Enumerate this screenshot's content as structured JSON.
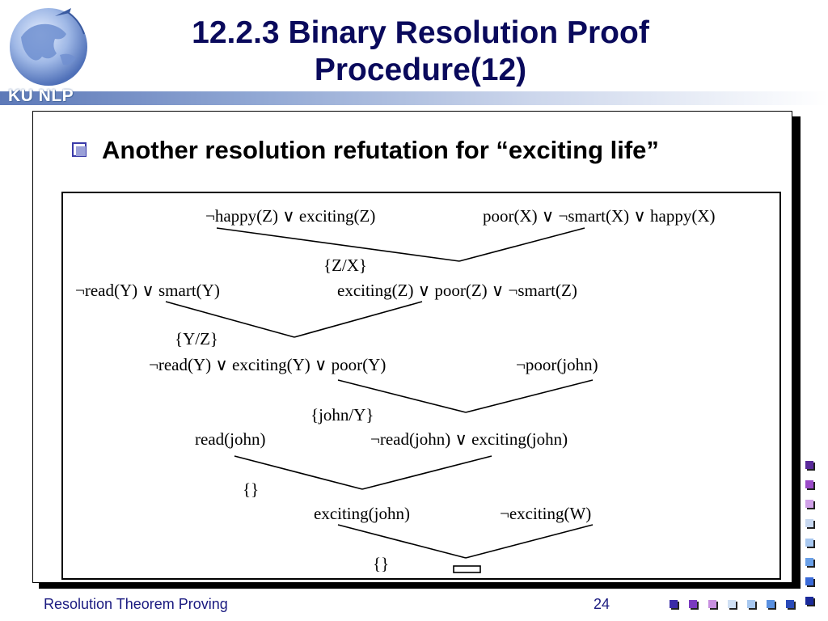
{
  "slide": {
    "title": "12.2.3 Binary Resolution Proof Procedure(12)",
    "title_line1": "12.2.3 Binary Resolution Proof",
    "title_line2": "Procedure(12)",
    "logo_text": "KU NLP",
    "bullet_text": "Another resolution refutation for “exciting life”",
    "footer_left": "Resolution Theorem Proving",
    "page_number": "24"
  },
  "diagram": {
    "clauses": [
      {
        "id": "c1",
        "text": "¬happy(Z) ∨ exciting(Z)"
      },
      {
        "id": "c2",
        "text": "poor(X) ∨ ¬smart(X) ∨ happy(X)"
      },
      {
        "id": "s1",
        "text": "{Z/X}"
      },
      {
        "id": "c3",
        "text": "¬read(Y) ∨ smart(Y)"
      },
      {
        "id": "c4",
        "text": "exciting(Z) ∨ poor(Z) ∨ ¬smart(Z)"
      },
      {
        "id": "s2",
        "text": "{Y/Z}"
      },
      {
        "id": "c5",
        "text": "¬read(Y) ∨ exciting(Y) ∨ poor(Y)"
      },
      {
        "id": "c6",
        "text": "¬poor(john)"
      },
      {
        "id": "s3",
        "text": "{john/Y}"
      },
      {
        "id": "c7",
        "text": "read(john)"
      },
      {
        "id": "c8",
        "text": "¬read(john) ∨ exciting(john)"
      },
      {
        "id": "s4",
        "text": "{}"
      },
      {
        "id": "c9",
        "text": "exciting(john)"
      },
      {
        "id": "c10",
        "text": "¬exciting(W)"
      },
      {
        "id": "s5",
        "text": "{}"
      }
    ]
  },
  "colors": {
    "title": "#0a0a5c",
    "accent": "#3a3aa8",
    "footer": "#1a1a80"
  }
}
